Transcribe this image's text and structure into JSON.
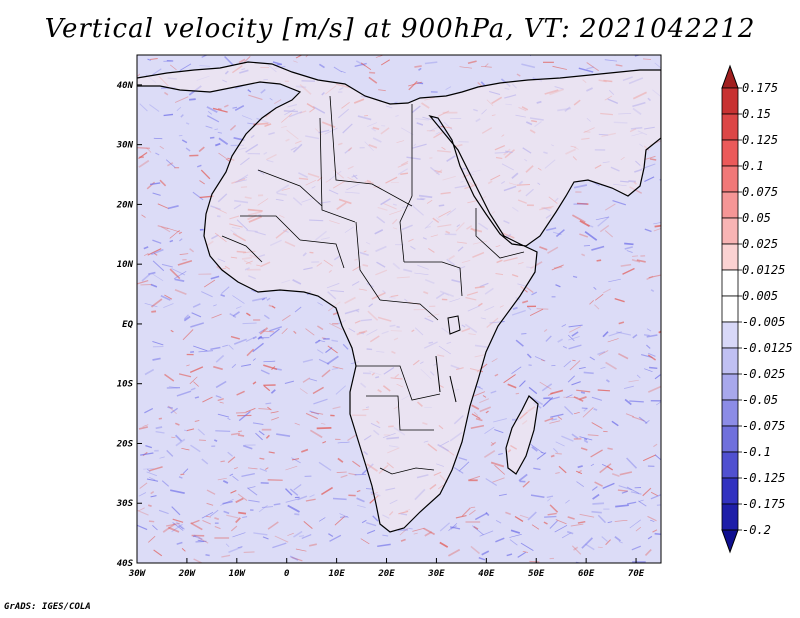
{
  "title": "Vertical velocity [m/s] at 900hPa, VT: 2021042212",
  "footer": "GrADS: IGES/COLA",
  "map": {
    "lon_range": [
      -30,
      75
    ],
    "lat_range": [
      -40,
      45
    ],
    "x_tick_labels": [
      "30W",
      "20W",
      "10W",
      "0",
      "10E",
      "20E",
      "30E",
      "40E",
      "50E",
      "60E",
      "70E"
    ],
    "y_tick_labels": [
      "40N",
      "30N",
      "20N",
      "10N",
      "EQ",
      "10S",
      "20S",
      "30S",
      "40S"
    ]
  },
  "colorbar": {
    "labels": [
      "0.175",
      "0.15",
      "0.125",
      "0.1",
      "0.075",
      "0.05",
      "0.025",
      "0.0125",
      "0.005",
      "-0.005",
      "-0.0125",
      "-0.025",
      "-0.05",
      "-0.075",
      "-0.1",
      "-0.125",
      "-0.175",
      "-0.2"
    ],
    "colors": [
      "#a01f1f",
      "#c83232",
      "#dc4646",
      "#eb5a5a",
      "#f07878",
      "#f59696",
      "#f8b4b4",
      "#fbd2d2",
      "#ffffff",
      "#ffffff",
      "#d8d8f8",
      "#c0c0f2",
      "#a8a8ec",
      "#8c8ce6",
      "#7070dc",
      "#5050d0",
      "#3232c0",
      "#1e1ea8",
      "#0f0f90"
    ]
  },
  "colors": {
    "ocean": "#dcdcf7",
    "land": "#f6e9ee",
    "positive": "#e2564f",
    "negative": "#6e6ee8"
  }
}
